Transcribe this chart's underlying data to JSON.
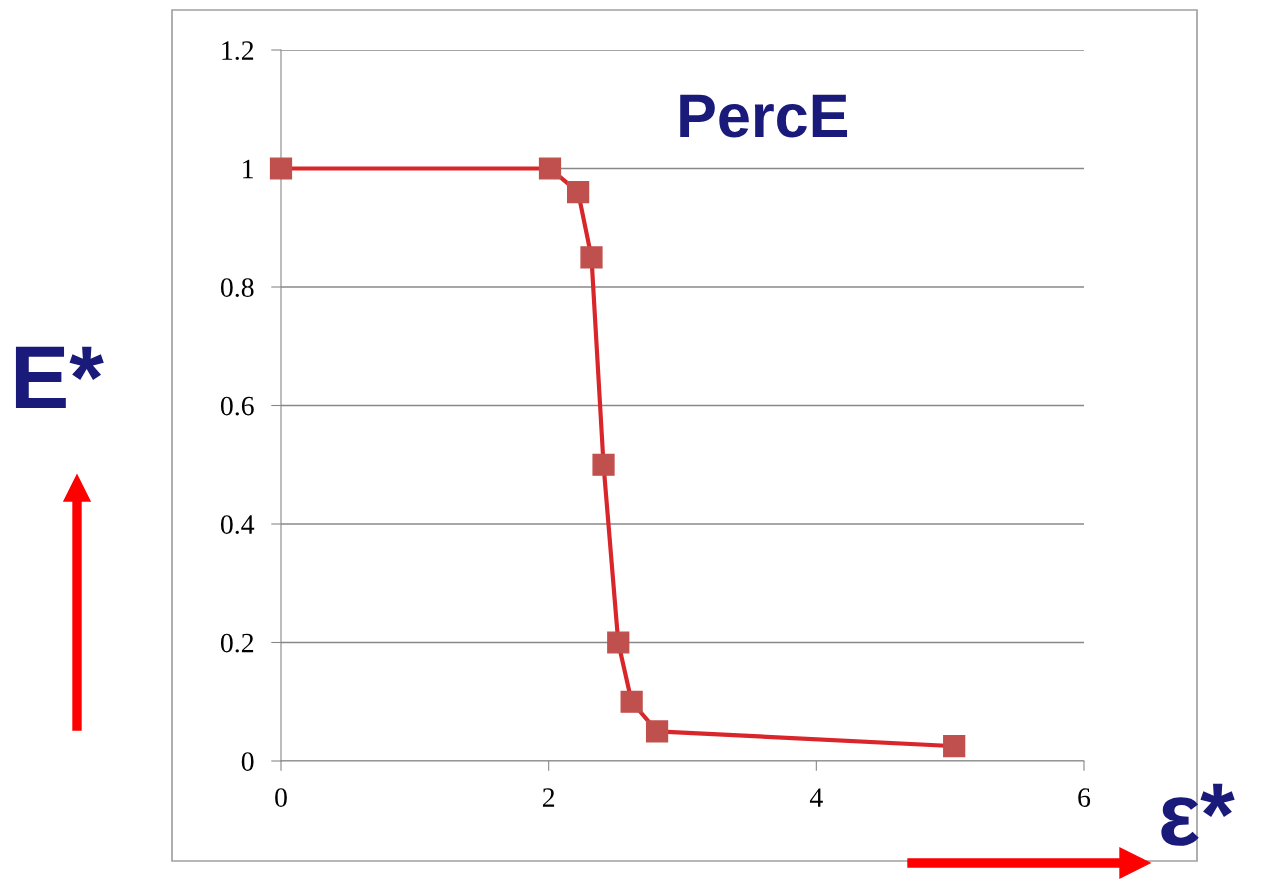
{
  "chart_data": {
    "type": "line",
    "xlabel": "ε*",
    "ylabel": "E*",
    "annotations": [
      "PercE"
    ],
    "x": [
      0,
      2.01,
      2.22,
      2.32,
      2.41,
      2.52,
      2.62,
      2.81,
      5.03
    ],
    "series": [
      {
        "color": "#d9262b",
        "values": [
          1.0,
          1.0,
          0.96,
          0.85,
          0.5,
          0.2,
          0.1,
          0.05,
          0.025
        ]
      }
    ],
    "xlim": [
      0,
      6
    ],
    "xticks": [
      0,
      2,
      4,
      6
    ],
    "ylim": [
      0,
      1.2
    ],
    "yticks": [
      0,
      0.2,
      0.4,
      0.6,
      0.8,
      1,
      1.2
    ],
    "grid": "y",
    "marker": "square",
    "line_style": "solid"
  }
}
